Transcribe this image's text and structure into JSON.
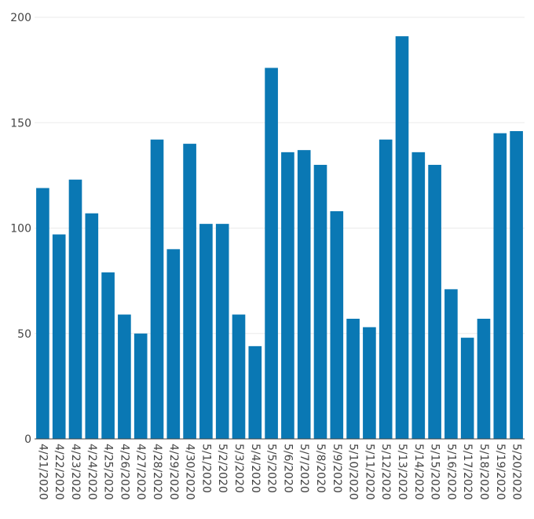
{
  "chart_data": {
    "type": "bar",
    "title": "",
    "xlabel": "",
    "ylabel": "",
    "ylim": [
      0,
      200
    ],
    "yticks": [
      0,
      50,
      100,
      150,
      200
    ],
    "grid": true,
    "bar_color": "#0a78b4",
    "categories": [
      "4/21/2020",
      "4/22/2020",
      "4/23/2020",
      "4/24/2020",
      "4/25/2020",
      "4/26/2020",
      "4/27/2020",
      "4/28/2020",
      "4/29/2020",
      "4/30/2020",
      "5/1/2020",
      "5/2/2020",
      "5/3/2020",
      "5/4/2020",
      "5/5/2020",
      "5/6/2020",
      "5/7/2020",
      "5/8/2020",
      "5/9/2020",
      "5/10/2020",
      "5/11/2020",
      "5/12/2020",
      "5/13/2020",
      "5/14/2020",
      "5/15/2020",
      "5/16/2020",
      "5/17/2020",
      "5/18/2020",
      "5/19/2020",
      "5/20/2020"
    ],
    "values": [
      119,
      97,
      123,
      107,
      79,
      59,
      50,
      142,
      90,
      140,
      102,
      102,
      59,
      44,
      176,
      136,
      137,
      130,
      108,
      57,
      53,
      142,
      191,
      136,
      130,
      71,
      48,
      57,
      145,
      146
    ]
  }
}
